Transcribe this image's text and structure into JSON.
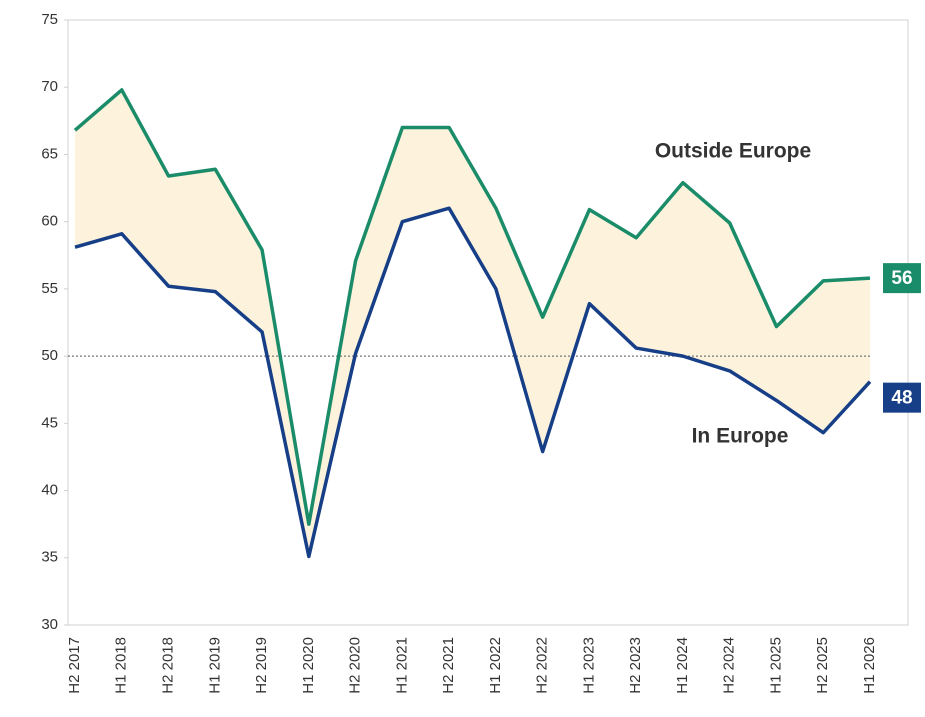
{
  "chart_data": {
    "type": "line",
    "categories": [
      "H2 2017",
      "H1 2018",
      "H2 2018",
      "H1 2019",
      "H2 2019",
      "H1 2020",
      "H2 2020",
      "H1 2021",
      "H2 2021",
      "H1 2022",
      "H2 2022",
      "H1 2023",
      "H2 2023",
      "H1 2024",
      "H2 2024",
      "H1 2025",
      "H2 2025",
      "H1 2026"
    ],
    "series": [
      {
        "name": "Outside Europe",
        "color": "#1b8c69",
        "values": [
          66.8,
          69.8,
          63.4,
          63.9,
          57.9,
          37.5,
          57.1,
          67,
          67,
          61,
          52.9,
          60.9,
          58.8,
          62.9,
          59.9,
          52.2,
          55.6,
          55.8
        ],
        "value_labels": [
          null,
          null,
          null,
          null,
          null,
          null,
          null,
          null,
          null,
          null,
          null,
          null,
          null,
          null,
          null,
          null,
          null,
          "56"
        ]
      },
      {
        "name": "In Europe",
        "color": "#173f87",
        "values": [
          58.1,
          59.1,
          55.2,
          54.8,
          51.8,
          35.1,
          50.2,
          60,
          61,
          55,
          42.9,
          53.9,
          50.6,
          50,
          48.9,
          46.7,
          44.3,
          48.1
        ],
        "value_labels": [
          null,
          null,
          null,
          null,
          null,
          null,
          null,
          null,
          null,
          null,
          null,
          null,
          null,
          null,
          null,
          null,
          null,
          "48"
        ]
      }
    ],
    "fill_between_color": "#fdf3dc",
    "reference_line": 50,
    "ylim": [
      30,
      75
    ],
    "yticks": [
      30,
      35,
      40,
      45,
      50,
      55,
      60,
      65,
      70,
      75
    ]
  }
}
